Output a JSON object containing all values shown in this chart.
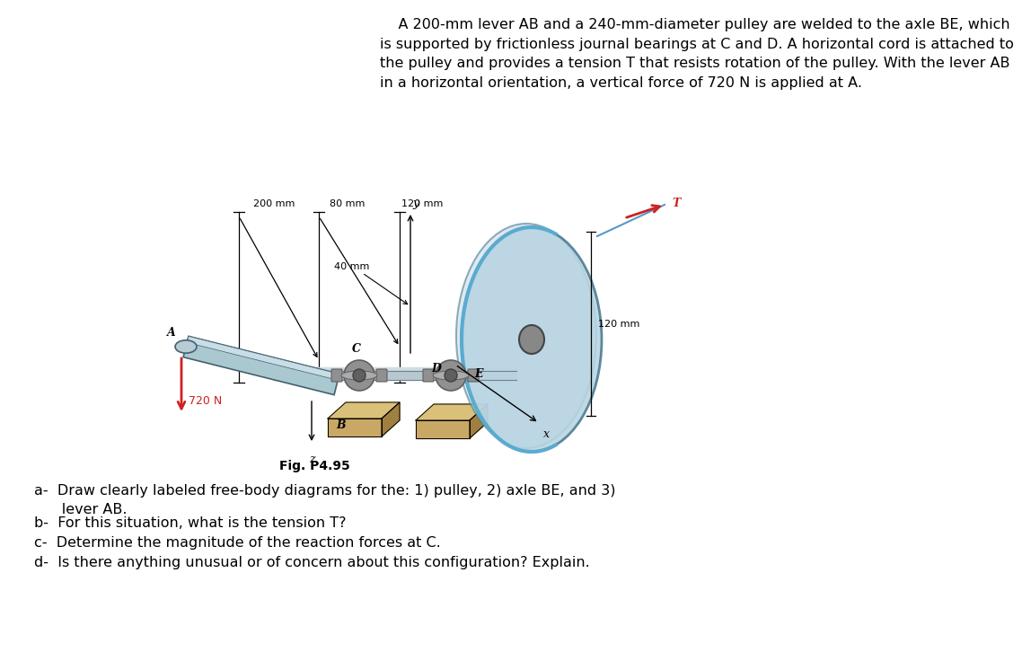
{
  "title_text": "    A 200-mm lever AB and a 240-mm-diameter pulley are welded to the axle BE, which\nis supported by frictionless journal bearings at C and D. A horizontal cord is attached to\nthe pulley and provides a tension T that resists rotation of the pulley. With the lever AB\nin a horizontal orientation, a vertical force of 720 N is applied at A.",
  "fig_label": "Fig. P4.95",
  "question_a": "a-  Draw clearly labeled free-body diagrams for the: 1) pulley, 2) axle BE, and 3)\n      lever AB.",
  "question_b": "b-  For this situation, what is the tension T?",
  "question_c": "c-  Determine the magnitude of the reaction forces at C.",
  "question_d": "d-  Is there anything unusual or of concern about this configuration? Explain.",
  "bg_color": "#ffffff",
  "text_color": "#000000",
  "title_fontsize": 11.5,
  "question_fontsize": 11.5,
  "dim_label_fontsize": 8.0,
  "point_label_fontsize": 9.0,
  "axis_label_fontsize": 9.0
}
